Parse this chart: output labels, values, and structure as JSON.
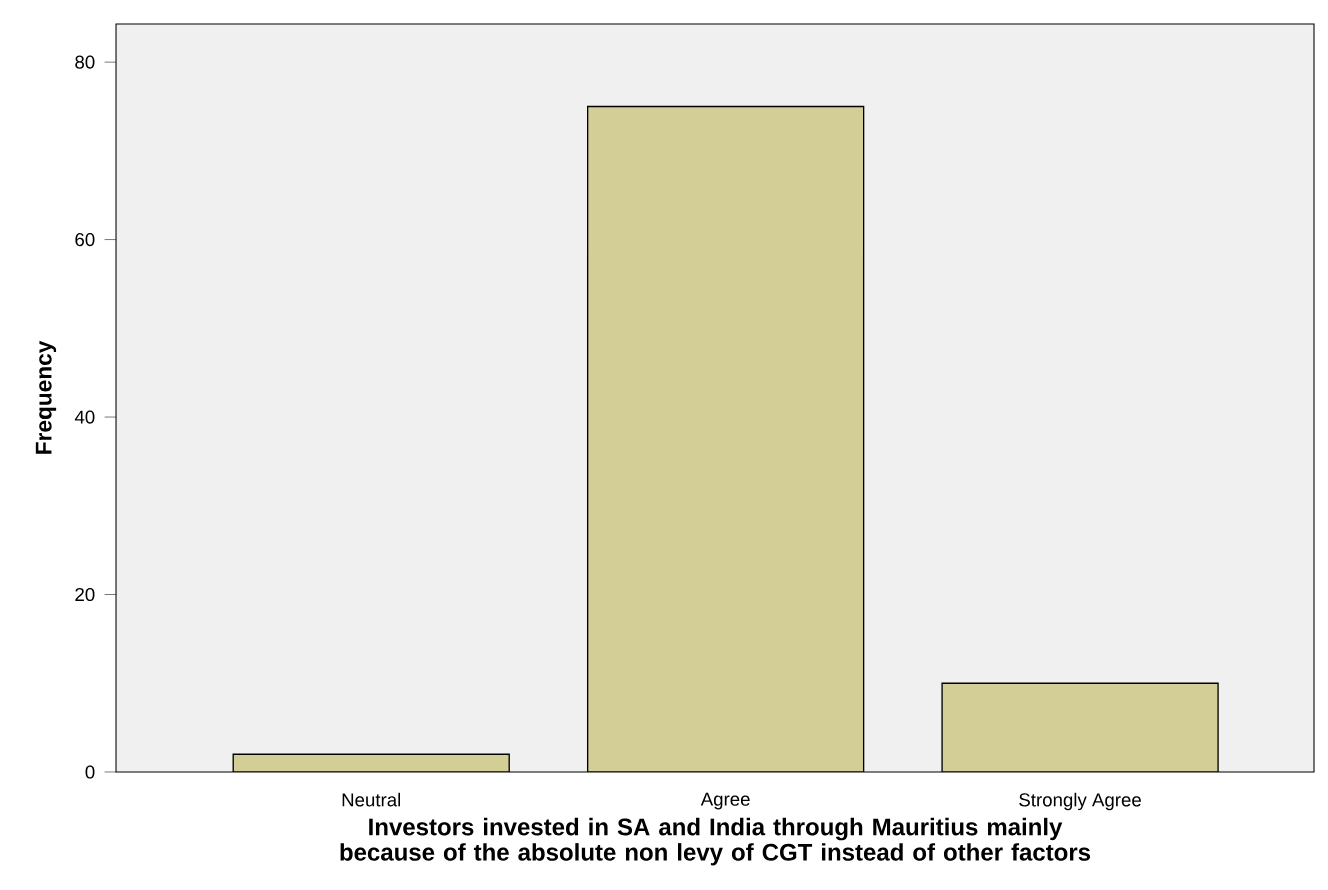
{
  "chart_data": {
    "type": "bar",
    "xlabel": "Investors invested in SA and India through Mauritius mainly because of the absolute non levy of CGT instead of other factors",
    "ylabel": "Frequency",
    "categories": [
      "Neutral",
      "Agree",
      "Strongly Agree"
    ],
    "values": [
      2,
      75,
      10
    ],
    "color": "#d3cd96",
    "ylim": [
      0,
      84.3
    ],
    "yticks": [
      0,
      20,
      40,
      60,
      80
    ]
  }
}
